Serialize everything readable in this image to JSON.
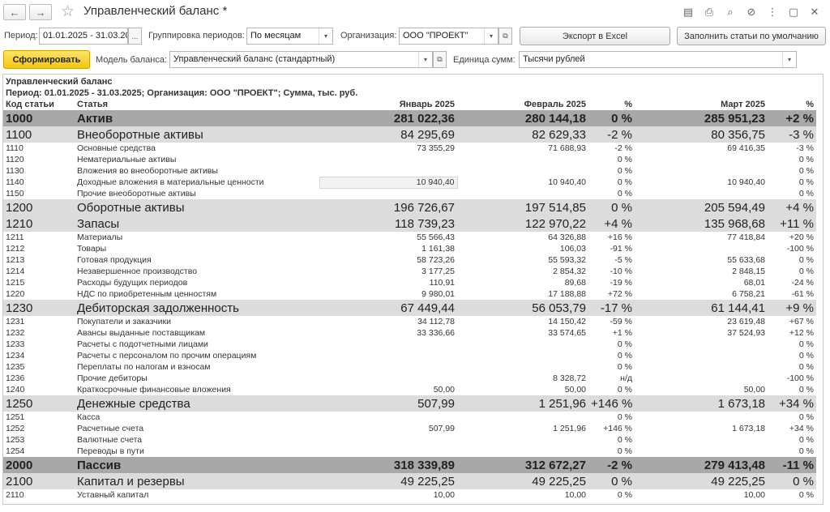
{
  "window": {
    "title": "Управленческий баланс *",
    "back_icon": "←",
    "forward_icon": "→",
    "star_icon": "☆",
    "toolbar_icons": [
      {
        "name": "save-icon",
        "glyph": "▤"
      },
      {
        "name": "print-icon",
        "glyph": "⎙"
      },
      {
        "name": "preview-icon",
        "glyph": "⌕"
      },
      {
        "name": "link-icon",
        "glyph": "⊘"
      },
      {
        "name": "more-icon",
        "glyph": "⋮"
      },
      {
        "name": "maximize-icon",
        "glyph": "▢"
      },
      {
        "name": "close-icon",
        "glyph": "✕"
      }
    ]
  },
  "filters": {
    "period_label": "Период:",
    "period_value": "01.01.2025 - 31.03.20",
    "period_more": "...",
    "grouping_label": "Группировка периодов:",
    "grouping_value": "По месяцам",
    "org_label": "Организация:",
    "org_value": "ООО \"ПРОЕКТ\"",
    "export_button": "Экспорт в Excel",
    "fill_button": "Заполнить статьи по умолчанию",
    "generate_button": "Сформировать",
    "model_label": "Модель баланса:",
    "model_value": "Управленческий баланс (стандартный)",
    "unit_label": "Единица сумм:",
    "unit_value": "Тысячи рублей",
    "dropdown_glyph": "▾",
    "open_glyph": "⧉"
  },
  "report": {
    "title": "Управленческий баланс",
    "subtitle": "Период: 01.01.2025 - 31.03.2025; Организация: ООО \"ПРОЕКТ\"; Сумма, тыс. руб.",
    "columns": [
      "Код статьи",
      "Статья",
      "Январь 2025",
      "Февраль 2025",
      "%",
      "Март 2025",
      "%"
    ],
    "rows": [
      {
        "lvl": 0,
        "code": "1000",
        "name": "Актив",
        "jan": "281 022,36",
        "feb": "280 144,18",
        "p1": "0 %",
        "p1c": "neu",
        "mar": "285 951,23",
        "p2": "+2 %",
        "p2c": "pos"
      },
      {
        "lvl": 1,
        "code": "1100",
        "name": "Внеоборотные активы",
        "jan": "84 295,69",
        "feb": "82 629,33",
        "p1": "-2 %",
        "p1c": "neg",
        "mar": "80 356,75",
        "p2": "-3 %",
        "p2c": "neg"
      },
      {
        "lvl": 2,
        "code": "1110",
        "name": "Основные средства",
        "jan": "73 355,29",
        "feb": "71 688,93",
        "p1": "-2 %",
        "p1c": "neg",
        "mar": "69 416,35",
        "p2": "-3 %",
        "p2c": "neg"
      },
      {
        "lvl": 2,
        "code": "1120",
        "name": "Нематериальные активы",
        "jan": "",
        "feb": "",
        "p1": "0 %",
        "p1c": "neu",
        "mar": "",
        "p2": "0 %",
        "p2c": "neu"
      },
      {
        "lvl": 2,
        "code": "1130",
        "name": "Вложения во внеоборотные активы",
        "jan": "",
        "feb": "",
        "p1": "0 %",
        "p1c": "neu",
        "mar": "",
        "p2": "0 %",
        "p2c": "neu"
      },
      {
        "lvl": 2,
        "code": "1140",
        "name": "Доходные вложения в материальные ценности",
        "jan": "10 940,40",
        "feb": "10 940,40",
        "p1": "0 %",
        "p1c": "neu",
        "mar": "10 940,40",
        "p2": "0 %",
        "p2c": "neu",
        "hl": true
      },
      {
        "lvl": 2,
        "code": "1150",
        "name": "Прочие внеоборотные активы",
        "jan": "",
        "feb": "",
        "p1": "0 %",
        "p1c": "neu",
        "mar": "",
        "p2": "0 %",
        "p2c": "neu"
      },
      {
        "lvl": 1,
        "code": "1200",
        "name": "Оборотные активы",
        "jan": "196 726,67",
        "feb": "197 514,85",
        "p1": "0 %",
        "p1c": "neu",
        "mar": "205 594,49",
        "p2": "+4 %",
        "p2c": "pos"
      },
      {
        "lvl": 1,
        "code": "1210",
        "name": "Запасы",
        "jan": "118 739,23",
        "feb": "122 970,22",
        "p1": "+4 %",
        "p1c": "pos",
        "mar": "135 968,68",
        "p2": "+11 %",
        "p2c": "pos"
      },
      {
        "lvl": 2,
        "code": "1211",
        "name": "Материалы",
        "jan": "55 566,43",
        "feb": "64 326,88",
        "p1": "+16 %",
        "p1c": "pos",
        "mar": "77 418,84",
        "p2": "+20 %",
        "p2c": "pos"
      },
      {
        "lvl": 2,
        "code": "1212",
        "name": "Товары",
        "jan": "1 161,38",
        "feb": "106,03",
        "p1": "-91 %",
        "p1c": "neg",
        "mar": "",
        "p2": "-100 %",
        "p2c": "neg"
      },
      {
        "lvl": 2,
        "code": "1213",
        "name": "Готовая продукция",
        "jan": "58 723,26",
        "feb": "55 593,32",
        "p1": "-5 %",
        "p1c": "neg",
        "mar": "55 633,68",
        "p2": "0 %",
        "p2c": "neu"
      },
      {
        "lvl": 2,
        "code": "1214",
        "name": "Незавершенное производство",
        "jan": "3 177,25",
        "feb": "2 854,32",
        "p1": "-10 %",
        "p1c": "neg",
        "mar": "2 848,15",
        "p2": "0 %",
        "p2c": "neu"
      },
      {
        "lvl": 2,
        "code": "1215",
        "name": "Расходы будущих периодов",
        "jan": "110,91",
        "feb": "89,68",
        "p1": "-19 %",
        "p1c": "neg",
        "mar": "68,01",
        "p2": "-24 %",
        "p2c": "neg"
      },
      {
        "lvl": 2,
        "code": "1220",
        "name": "НДС по приобретенным ценностям",
        "jan": "9 980,01",
        "feb": "17 188,88",
        "p1": "+72 %",
        "p1c": "pos",
        "mar": "6 758,21",
        "p2": "-61 %",
        "p2c": "neg"
      },
      {
        "lvl": 1,
        "code": "1230",
        "name": "Дебиторская задолженность",
        "jan": "67 449,44",
        "feb": "56 053,79",
        "p1": "-17 %",
        "p1c": "neg",
        "mar": "61 144,41",
        "p2": "+9 %",
        "p2c": "pos"
      },
      {
        "lvl": 2,
        "code": "1231",
        "name": "Покупатели и заказчики",
        "jan": "34 112,78",
        "feb": "14 150,42",
        "p1": "-59 %",
        "p1c": "neg",
        "mar": "23 619,48",
        "p2": "+67 %",
        "p2c": "pos"
      },
      {
        "lvl": 2,
        "code": "1232",
        "name": "Авансы выданные поставщикам",
        "jan": "33 336,66",
        "feb": "33 574,65",
        "p1": "+1 %",
        "p1c": "pos",
        "mar": "37 524,93",
        "p2": "+12 %",
        "p2c": "pos"
      },
      {
        "lvl": 2,
        "code": "1233",
        "name": "Расчеты с подотчетными лицами",
        "jan": "",
        "feb": "",
        "p1": "0 %",
        "p1c": "neu",
        "mar": "",
        "p2": "0 %",
        "p2c": "neu"
      },
      {
        "lvl": 2,
        "code": "1234",
        "name": "Расчеты с персоналом по прочим операциям",
        "jan": "",
        "feb": "",
        "p1": "0 %",
        "p1c": "neu",
        "mar": "",
        "p2": "0 %",
        "p2c": "neu"
      },
      {
        "lvl": 2,
        "code": "1235",
        "name": "Переплаты по налогам и взносам",
        "jan": "",
        "feb": "",
        "p1": "0 %",
        "p1c": "neu",
        "mar": "",
        "p2": "0 %",
        "p2c": "neu"
      },
      {
        "lvl": 2,
        "code": "1236",
        "name": "Прочие дебиторы",
        "jan": "",
        "feb": "8 328,72",
        "p1": "н/д",
        "p1c": "neu",
        "mar": "",
        "p2": "-100 %",
        "p2c": "neg"
      },
      {
        "lvl": 2,
        "code": "1240",
        "name": "Краткосрочные финансовые вложения",
        "jan": "50,00",
        "feb": "50,00",
        "p1": "0 %",
        "p1c": "neu",
        "mar": "50,00",
        "p2": "0 %",
        "p2c": "neu"
      },
      {
        "lvl": 1,
        "code": "1250",
        "name": "Денежные средства",
        "jan": "507,99",
        "feb": "1 251,96",
        "p1": "+146 %",
        "p1c": "pos",
        "mar": "1 673,18",
        "p2": "+34 %",
        "p2c": "pos"
      },
      {
        "lvl": 2,
        "code": "1251",
        "name": "Касса",
        "jan": "",
        "feb": "",
        "p1": "0 %",
        "p1c": "neu",
        "mar": "",
        "p2": "0 %",
        "p2c": "neu"
      },
      {
        "lvl": 2,
        "code": "1252",
        "name": "Расчетные счета",
        "jan": "507,99",
        "feb": "1 251,96",
        "p1": "+146 %",
        "p1c": "pos",
        "mar": "1 673,18",
        "p2": "+34 %",
        "p2c": "pos"
      },
      {
        "lvl": 2,
        "code": "1253",
        "name": "Валютные счета",
        "jan": "",
        "feb": "",
        "p1": "0 %",
        "p1c": "neu",
        "mar": "",
        "p2": "0 %",
        "p2c": "neu"
      },
      {
        "lvl": 2,
        "code": "1254",
        "name": "Переводы в пути",
        "jan": "",
        "feb": "",
        "p1": "0 %",
        "p1c": "neu",
        "mar": "",
        "p2": "0 %",
        "p2c": "neu"
      },
      {
        "lvl": 0,
        "code": "2000",
        "name": "Пассив",
        "jan": "318 339,89",
        "feb": "312 672,27",
        "p1": "-2 %",
        "p1c": "neg",
        "mar": "279 413,48",
        "p2": "-11 %",
        "p2c": "neg"
      },
      {
        "lvl": 1,
        "code": "2100",
        "name": "Капитал и резервы",
        "jan": "49 225,25",
        "feb": "49 225,25",
        "p1": "0 %",
        "p1c": "neu",
        "mar": "49 225,25",
        "p2": "0 %",
        "p2c": "neu"
      },
      {
        "lvl": 2,
        "code": "2110",
        "name": "Уставный капитал",
        "jan": "10,00",
        "feb": "10,00",
        "p1": "0 %",
        "p1c": "neu",
        "mar": "10,00",
        "p2": "0 %",
        "p2c": "neu"
      }
    ]
  },
  "colors": {
    "generate_button": "#f3c60e",
    "level0_row": "#a8a8a8",
    "level1_row": "#dcdcdc",
    "positive": "#1e8a1e",
    "negative": "#d21f1f"
  }
}
